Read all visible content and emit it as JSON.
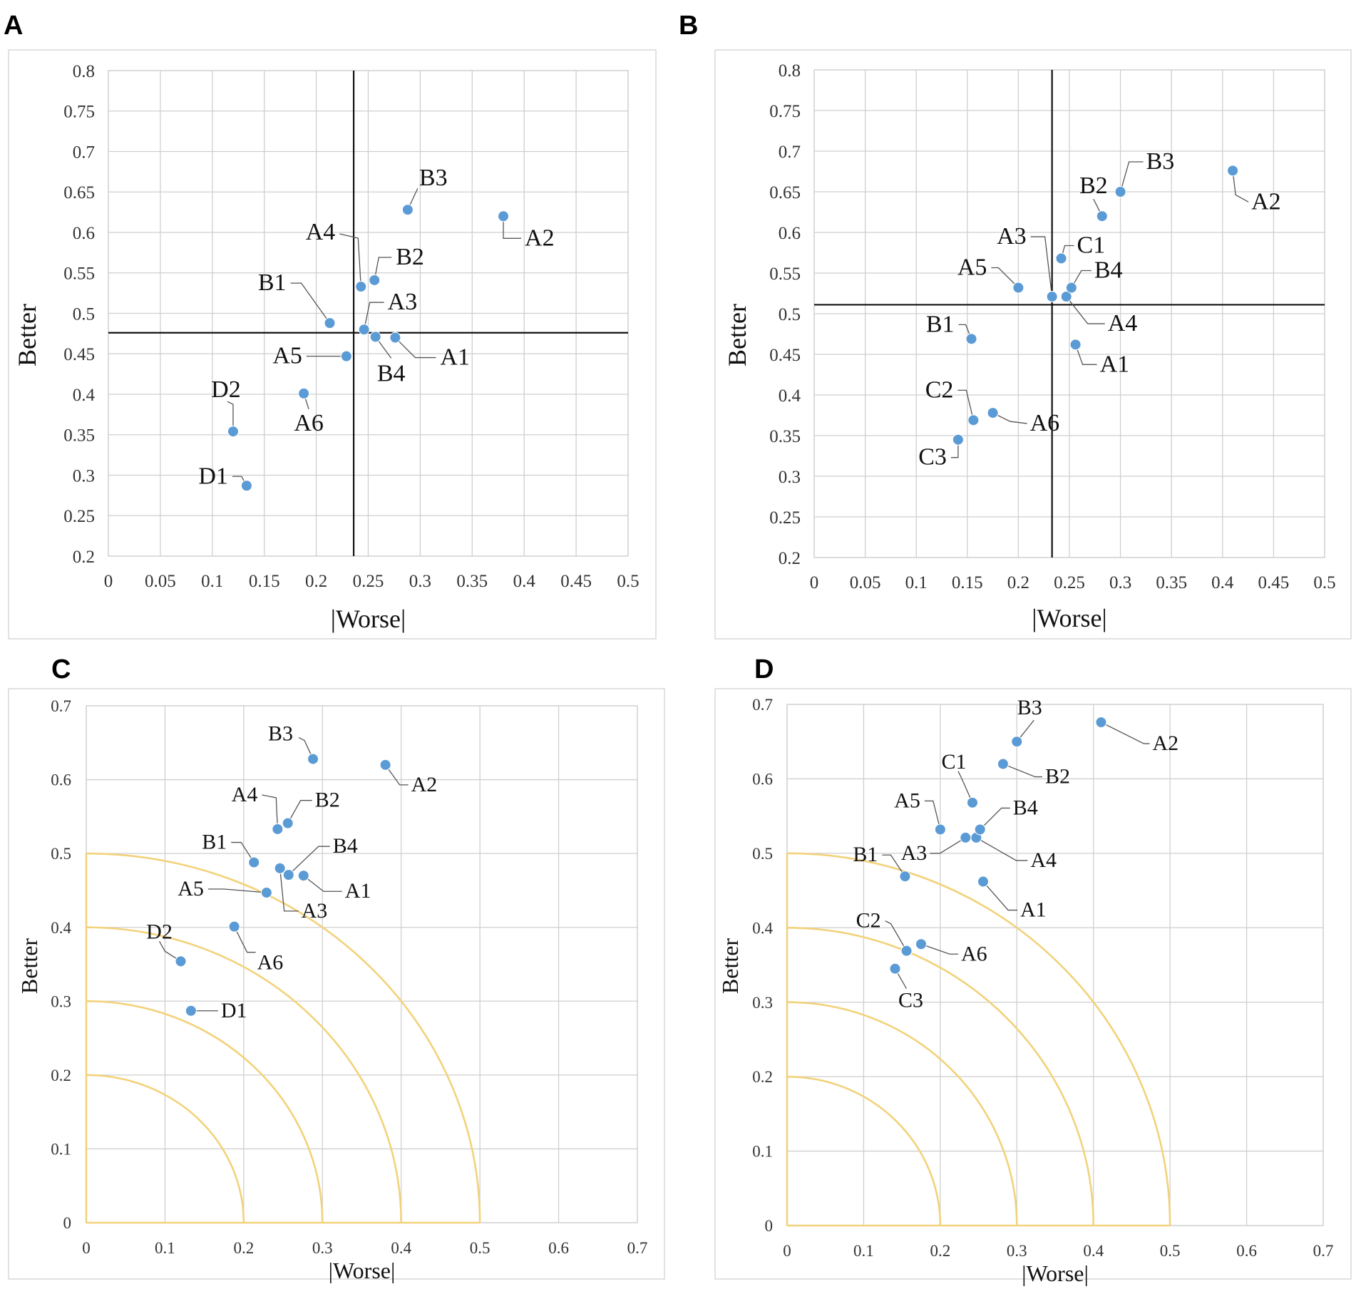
{
  "chart_data": [
    {
      "panel": "A",
      "type": "scatter",
      "xlabel": "|Worse|",
      "ylabel": "Better",
      "xlim": [
        0,
        0.5
      ],
      "ylim": [
        0.2,
        0.8
      ],
      "xticks": [
        "0",
        "0.05",
        "0.1",
        "0.15",
        "0.2",
        "0.25",
        "0.3",
        "0.35",
        "0.4",
        "0.45",
        "0.5"
      ],
      "yticks": [
        "0.2",
        "0.25",
        "0.3",
        "0.35",
        "0.4",
        "0.45",
        "0.5",
        "0.55",
        "0.6",
        "0.65",
        "0.7",
        "0.75",
        "0.8"
      ],
      "reference_lines": {
        "x": 0.236,
        "y": 0.476
      },
      "points": [
        {
          "label": "A1",
          "x": 0.276,
          "y": 0.47
        },
        {
          "label": "A2",
          "x": 0.38,
          "y": 0.62
        },
        {
          "label": "A3",
          "x": 0.246,
          "y": 0.48
        },
        {
          "label": "A4",
          "x": 0.243,
          "y": 0.533
        },
        {
          "label": "A5",
          "x": 0.229,
          "y": 0.447
        },
        {
          "label": "A6",
          "x": 0.188,
          "y": 0.401
        },
        {
          "label": "B1",
          "x": 0.213,
          "y": 0.488
        },
        {
          "label": "B2",
          "x": 0.256,
          "y": 0.541
        },
        {
          "label": "B3",
          "x": 0.288,
          "y": 0.628
        },
        {
          "label": "B4",
          "x": 0.257,
          "y": 0.471
        },
        {
          "label": "D1",
          "x": 0.133,
          "y": 0.287
        },
        {
          "label": "D2",
          "x": 0.12,
          "y": 0.354
        }
      ]
    },
    {
      "panel": "B",
      "type": "scatter",
      "xlabel": "|Worse|",
      "ylabel": "Better",
      "xlim": [
        0,
        0.5
      ],
      "ylim": [
        0.2,
        0.8
      ],
      "xticks": [
        "0",
        "0.05",
        "0.1",
        "0.15",
        "0.2",
        "0.25",
        "0.3",
        "0.35",
        "0.4",
        "0.45",
        "0.5"
      ],
      "yticks": [
        "0.2",
        "0.25",
        "0.3",
        "0.35",
        "0.4",
        "0.45",
        "0.5",
        "0.55",
        "0.6",
        "0.65",
        "0.7",
        "0.75",
        "0.8"
      ],
      "reference_lines": {
        "x": 0.233,
        "y": 0.511
      },
      "points": [
        {
          "label": "A1",
          "x": 0.256,
          "y": 0.462
        },
        {
          "label": "A2",
          "x": 0.41,
          "y": 0.676
        },
        {
          "label": "A3",
          "x": 0.233,
          "y": 0.521
        },
        {
          "label": "A4",
          "x": 0.247,
          "y": 0.521
        },
        {
          "label": "A5",
          "x": 0.2,
          "y": 0.532
        },
        {
          "label": "A6",
          "x": 0.175,
          "y": 0.378
        },
        {
          "label": "B1",
          "x": 0.154,
          "y": 0.469
        },
        {
          "label": "B2",
          "x": 0.282,
          "y": 0.62
        },
        {
          "label": "B3",
          "x": 0.3,
          "y": 0.65
        },
        {
          "label": "B4",
          "x": 0.252,
          "y": 0.532
        },
        {
          "label": "C1",
          "x": 0.242,
          "y": 0.568
        },
        {
          "label": "C2",
          "x": 0.156,
          "y": 0.369
        },
        {
          "label": "C3",
          "x": 0.141,
          "y": 0.345
        }
      ]
    },
    {
      "panel": "C",
      "type": "scatter",
      "xlabel": "|Worse|",
      "ylabel": "Better",
      "xlim": [
        0,
        0.7
      ],
      "ylim": [
        0,
        0.7
      ],
      "xticks": [
        "0",
        "0.1",
        "0.2",
        "0.3",
        "0.4",
        "0.5",
        "0.6",
        "0.7"
      ],
      "yticks": [
        "0",
        "0.1",
        "0.2",
        "0.3",
        "0.4",
        "0.5",
        "0.6",
        "0.7"
      ],
      "arc_radii": [
        0.2,
        0.3,
        0.4,
        0.5
      ],
      "points": [
        {
          "label": "A1",
          "x": 0.276,
          "y": 0.47
        },
        {
          "label": "A2",
          "x": 0.38,
          "y": 0.62
        },
        {
          "label": "A3",
          "x": 0.246,
          "y": 0.48
        },
        {
          "label": "A4",
          "x": 0.243,
          "y": 0.533
        },
        {
          "label": "A5",
          "x": 0.229,
          "y": 0.447
        },
        {
          "label": "A6",
          "x": 0.188,
          "y": 0.401
        },
        {
          "label": "B1",
          "x": 0.213,
          "y": 0.488
        },
        {
          "label": "B2",
          "x": 0.256,
          "y": 0.541
        },
        {
          "label": "B3",
          "x": 0.288,
          "y": 0.628
        },
        {
          "label": "B4",
          "x": 0.257,
          "y": 0.471
        },
        {
          "label": "D1",
          "x": 0.133,
          "y": 0.287
        },
        {
          "label": "D2",
          "x": 0.12,
          "y": 0.354
        }
      ]
    },
    {
      "panel": "D",
      "type": "scatter",
      "xlabel": "|Worse|",
      "ylabel": "Better",
      "xlim": [
        0,
        0.7
      ],
      "ylim": [
        0,
        0.7
      ],
      "xticks": [
        "0",
        "0.1",
        "0.2",
        "0.3",
        "0.4",
        "0.5",
        "0.6",
        "0.7"
      ],
      "yticks": [
        "0",
        "0.1",
        "0.2",
        "0.3",
        "0.4",
        "0.5",
        "0.6",
        "0.7"
      ],
      "arc_radii": [
        0.2,
        0.3,
        0.4,
        0.5
      ],
      "points": [
        {
          "label": "A1",
          "x": 0.256,
          "y": 0.462
        },
        {
          "label": "A2",
          "x": 0.41,
          "y": 0.676
        },
        {
          "label": "A3",
          "x": 0.233,
          "y": 0.521
        },
        {
          "label": "A4",
          "x": 0.247,
          "y": 0.521
        },
        {
          "label": "A5",
          "x": 0.2,
          "y": 0.532
        },
        {
          "label": "A6",
          "x": 0.175,
          "y": 0.378
        },
        {
          "label": "B1",
          "x": 0.154,
          "y": 0.469
        },
        {
          "label": "B2",
          "x": 0.282,
          "y": 0.62
        },
        {
          "label": "B3",
          "x": 0.3,
          "y": 0.65
        },
        {
          "label": "B4",
          "x": 0.252,
          "y": 0.532
        },
        {
          "label": "C1",
          "x": 0.242,
          "y": 0.568
        },
        {
          "label": "C2",
          "x": 0.156,
          "y": 0.369
        },
        {
          "label": "C3",
          "x": 0.141,
          "y": 0.345
        }
      ]
    }
  ],
  "colors": {
    "point": "#5b9bd5",
    "grid": "#cfcfcf",
    "reference_line": "#111111",
    "arc": "#f2d27a"
  }
}
